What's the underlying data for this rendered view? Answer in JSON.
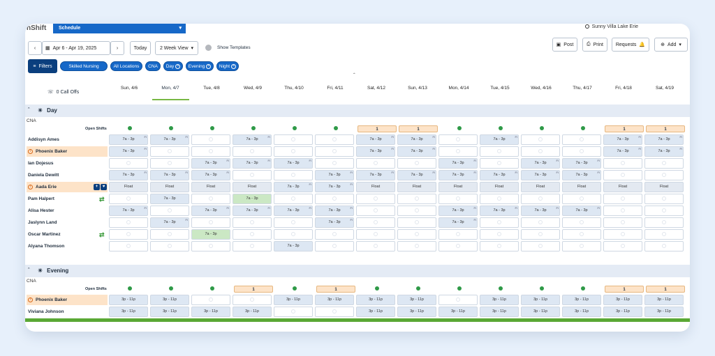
{
  "app": {
    "logo": "nShift",
    "module": "Schedule",
    "facility": "Sunny Villa Lake Erie"
  },
  "toolbar": {
    "date_range": "Apr 6 - Apr 19, 2025",
    "today": "Today",
    "view": "2 Week View",
    "show_templates": "Show Templates",
    "post": "Post",
    "print": "Print",
    "requests": "Requests",
    "add": "Add"
  },
  "filters": {
    "label": "Filters",
    "chips": [
      "Skilled Nursing",
      "All Locations",
      "CNA",
      "Day",
      "Evening",
      "Night"
    ]
  },
  "grid": {
    "call_offs": "0 Call Offs",
    "days": [
      "Sun, 4/6",
      "Mon, 4/7",
      "Tue, 4/8",
      "Wed, 4/9",
      "Thu, 4/10",
      "Fri, 4/11",
      "Sat, 4/12",
      "Sun, 4/13",
      "Mon, 4/14",
      "Tue, 4/15",
      "Wed, 4/16",
      "Thu, 4/17",
      "Fri, 4/18",
      "Sat, 4/19"
    ],
    "sections": [
      {
        "title": "Day",
        "role": "CNA",
        "open_label": "Open Shifts",
        "open": [
          "ok",
          "ok",
          "ok",
          "ok",
          "ok",
          "ok",
          "1",
          "1",
          "ok",
          "ok",
          "ok",
          "ok",
          "1",
          "1"
        ],
        "rows": [
          {
            "name": "Addisyn Ames",
            "cells": [
              "7a - 3p|FI",
              "7a - 3p|FI",
              "",
              "7a - 3p|FI",
              "",
              "",
              "7a - 3p|FI",
              "7a - 3p|FI",
              "",
              "7a - 3p|FI",
              "",
              "",
              "7a - 3p|FI",
              "7a - 3p|FI"
            ]
          },
          {
            "name": "Phoenix Baker",
            "hl": true,
            "warn": true,
            "cells": [
              "7a - 3p|FI",
              "",
              "",
              "",
              "",
              "",
              "7a - 3p|FI",
              "7a - 3p|FI",
              "",
              "",
              "",
              "",
              "7a - 3p|FI",
              "7a - 3p|FI"
            ]
          },
          {
            "name": "Ian Dojesus",
            "cells": [
              "",
              "",
              "7a - 3p|FI",
              "7a - 3p|FI",
              "7a - 3p|FI",
              "",
              "",
              "",
              "7a - 3p|FI",
              "",
              "7a - 3p|FI",
              "7a - 3p|FI",
              "",
              ""
            ]
          },
          {
            "name": "Daniela Dewitt",
            "cells": [
              "7a - 3p|FI",
              "7a - 3p|FI",
              "7a - 3p|FI",
              "",
              "",
              "7a - 3p|FI",
              "7a - 3p|FI",
              "7a - 3p|FI",
              "7a - 3p|FI",
              "7a - 3p|FI",
              "7a - 3p|FI",
              "7a - 3p|FI",
              "",
              ""
            ]
          },
          {
            "name": "Aada Erie",
            "hl": true,
            "warn": true,
            "icons": true,
            "cells": [
              "Float|",
              "Float|",
              "Float|",
              "Float|",
              "7a - 3p|FI",
              "7a - 3p|FI",
              "Float|",
              "Float|",
              "Float|",
              "Float|",
              "Float|",
              "Float|",
              "Float|",
              "Float|"
            ]
          },
          {
            "name": "Pam Halpert",
            "swap": true,
            "cells": [
              "",
              "7a - 3p|",
              "",
              "7a - 3p|G",
              "",
              "",
              "",
              "",
              "",
              "",
              "",
              "",
              "",
              ""
            ]
          },
          {
            "name": "Alisa Hester",
            "cells": [
              "7a - 3p|FI",
              "",
              "7a - 3p|FI",
              "7a - 3p|FI",
              "7a - 3p|FI",
              "7a - 3p|FI",
              "",
              "",
              "7a - 3p|FI",
              "7a - 3p|FI",
              "7a - 3p|FI",
              "7a - 3p|FI",
              "",
              ""
            ]
          },
          {
            "name": "Jaslynn Land",
            "cells": [
              "",
              "7a - 3p|FI",
              "",
              "",
              "",
              "7a - 3p|FI",
              "",
              "",
              "7a - 3p|FI",
              "",
              "",
              "",
              "",
              ""
            ]
          },
          {
            "name": "Oscar Martinez",
            "swap": true,
            "cells": [
              "",
              "",
              "7a - 3p|G",
              "",
              "",
              "",
              "",
              "",
              "",
              "",
              "",
              "",
              "",
              ""
            ]
          },
          {
            "name": "Alyana Thomson",
            "cells": [
              "",
              "",
              "",
              "",
              "7a - 3p|",
              "",
              "",
              "",
              "",
              "",
              "",
              "",
              "",
              ""
            ]
          }
        ]
      },
      {
        "title": "Evening",
        "role": "CNA",
        "open_label": "Open Shifts",
        "open": [
          "ok",
          "ok",
          "ok",
          "1",
          "ok",
          "1",
          "ok",
          "ok",
          "ok",
          "ok",
          "ok",
          "ok",
          "1",
          "1"
        ],
        "rows": [
          {
            "name": "Phoenix Baker",
            "hl": true,
            "warn": true,
            "cells": [
              "3p - 11p|",
              "3p - 11p|",
              "",
              "",
              "3p - 11p|",
              "3p - 11p|",
              "3p - 11p|",
              "3p - 11p|",
              "",
              "3p - 11p|",
              "3p - 11p|",
              "3p - 11p|",
              "3p - 11p|",
              "3p - 11p|"
            ]
          },
          {
            "name": "Viviana Johnson",
            "cells": [
              "3p - 11p|",
              "3p - 11p|",
              "3p - 11p|",
              "3p - 11p|",
              "",
              "",
              "3p - 11p|",
              "3p - 11p|",
              "3p - 11p|",
              "3p - 11p|",
              "3p - 11p|",
              "3p - 11p|",
              "3p - 11p|",
              "3p - 11p|"
            ]
          }
        ]
      }
    ]
  }
}
